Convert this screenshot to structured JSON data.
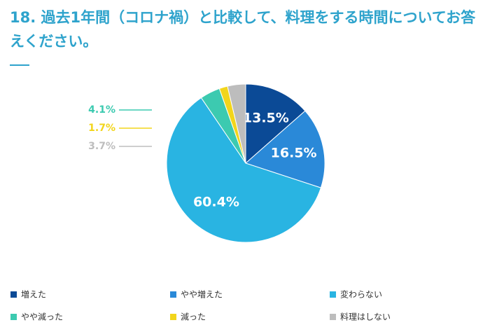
{
  "chart_data": {
    "type": "pie",
    "title": "18. 過去1年間（コロナ禍）と比較して、料理をする時間についてお答えください。",
    "categories": [
      "増えた",
      "やや増えた",
      "変わらない",
      "やや減った",
      "減った",
      "料理はしない"
    ],
    "values": [
      13.5,
      16.5,
      60.4,
      4.1,
      1.7,
      3.7
    ],
    "value_labels": [
      "13.5%",
      "16.5%",
      "60.4%",
      "4.1%",
      "1.7%",
      "3.7%"
    ],
    "colors": [
      "#0b4a96",
      "#2a89d8",
      "#29b4e2",
      "#3ccab0",
      "#f2d51b",
      "#bdbdbd"
    ]
  }
}
